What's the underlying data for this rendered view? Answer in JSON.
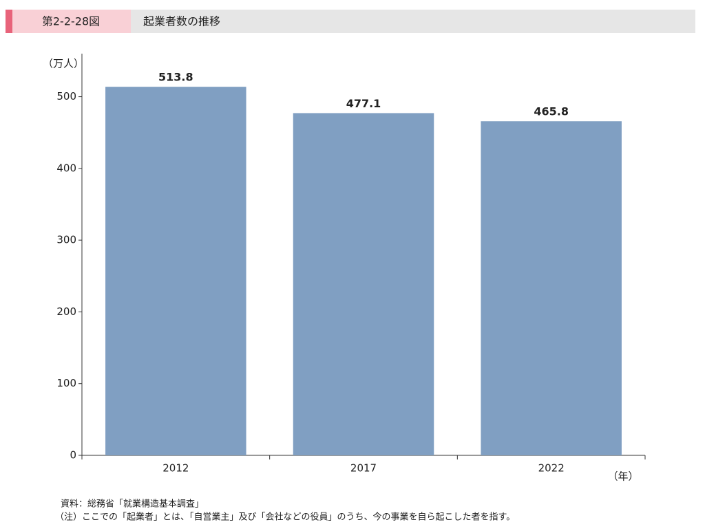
{
  "chart_data": {
    "type": "bar",
    "figure_label": "第2-2-28図",
    "title": "起業者数の推移",
    "y_label": "（万人）",
    "x_label": "（年）",
    "categories": [
      "2012",
      "2017",
      "2022"
    ],
    "values": [
      513.8,
      477.1,
      465.8
    ],
    "color": "#809fc2",
    "ylim": [
      0,
      560
    ],
    "yticks": [
      0,
      100,
      200,
      300,
      400,
      500
    ],
    "grid": false,
    "source": "資料：総務省「就業構造基本調査」",
    "note": "（注）ここでの「起業者」とは、「自営業主」及び「会社などの役員」のうち、今の事業を自ら起こした者を指す。"
  }
}
